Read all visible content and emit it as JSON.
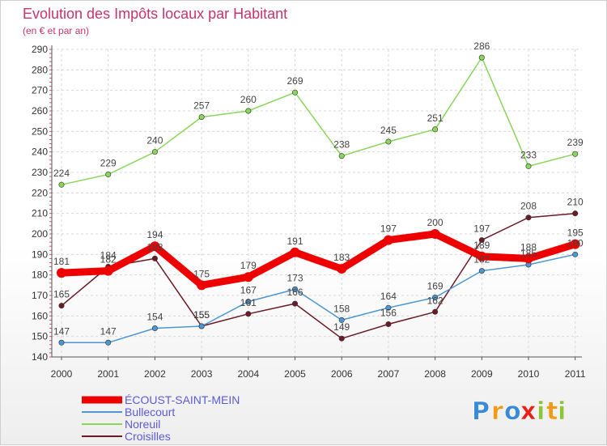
{
  "chart_data": {
    "type": "line",
    "title": "Evolution des Impôts locaux par Habitant",
    "subtitle": "(en € et par an)",
    "xlabel": "",
    "ylabel": "",
    "x": [
      "2000",
      "2001",
      "2002",
      "2003",
      "2004",
      "2005",
      "2006",
      "2007",
      "2008",
      "2009",
      "2010",
      "2011"
    ],
    "ylim": [
      140,
      290
    ],
    "yticks": [
      140,
      150,
      160,
      170,
      180,
      190,
      200,
      210,
      220,
      230,
      240,
      250,
      260,
      270,
      280,
      290
    ],
    "grid": true,
    "legend_position": "bottom-left",
    "series": [
      {
        "name": "ÉCOUST-SAINT-MEIN",
        "color": "#ee0000",
        "values": [
          181,
          182,
          194,
          175,
          179,
          191,
          183,
          197,
          200,
          189,
          188,
          195
        ]
      },
      {
        "name": "Bullecourt",
        "color": "#4d96d2",
        "values": [
          147,
          147,
          154,
          155,
          167,
          173,
          158,
          164,
          169,
          182,
          185,
          190
        ]
      },
      {
        "name": "Noreuil",
        "color": "#88d65a",
        "values": [
          224,
          229,
          240,
          257,
          260,
          269,
          238,
          245,
          251,
          286,
          233,
          239
        ]
      },
      {
        "name": "Croisilles",
        "color": "#6b1a26",
        "values": [
          165,
          184,
          188,
          155,
          161,
          166,
          149,
          156,
          162,
          197,
          208,
          210
        ]
      }
    ]
  },
  "logo": {
    "text": "Proxiti",
    "letters": [
      "P",
      "r",
      "o",
      "x",
      "i",
      "t",
      "i"
    ],
    "colors": [
      "#3a8ad8",
      "#f29a18",
      "#3a8ad8",
      "#e8211b",
      "#8cc43c",
      "#f29a18",
      "#8cc43c"
    ]
  }
}
